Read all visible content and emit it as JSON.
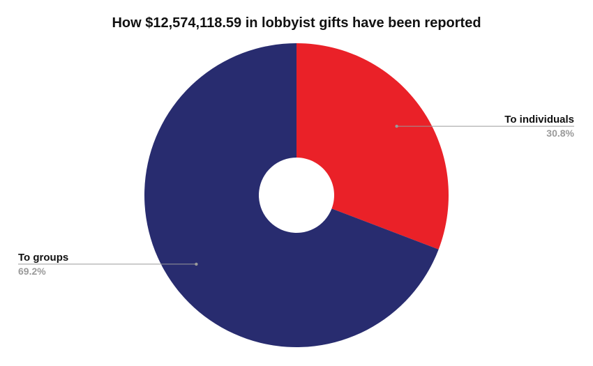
{
  "chart_data": {
    "type": "pie",
    "title": "How $12,574,118.59 in lobbyist gifts have been reported",
    "donut": true,
    "slices": [
      {
        "label": "To individuals",
        "percent_label": "30.8%",
        "value": 30.8,
        "color": "#ea2128"
      },
      {
        "label": "To groups",
        "percent_label": "69.2%",
        "value": 69.2,
        "color": "#282c6f"
      }
    ],
    "legend": "none"
  }
}
